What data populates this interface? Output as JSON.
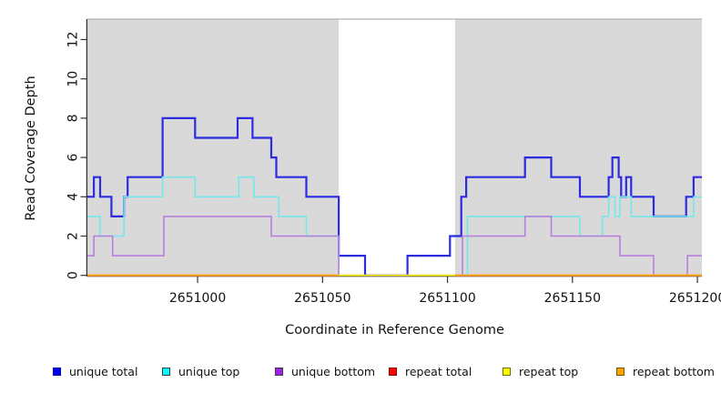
{
  "figure": {
    "x_axis_title": "Coordinate in Reference Genome",
    "y_axis_title": "Read Coverage Depth"
  },
  "chart_data": {
    "type": "line",
    "subtype": "step-coverage-plot",
    "title": "",
    "xlabel": "Coordinate in Reference Genome",
    "ylabel": "Read Coverage Depth",
    "xlim": [
      2650955.9,
      2651201.8
    ],
    "ylim": [
      0,
      13
    ],
    "x_ticks": [
      2651000,
      2651050,
      2651100,
      2651150,
      2651200
    ],
    "x_tick_labels": [
      "2651000",
      "2651050",
      "2651100",
      "2651150",
      "2651200"
    ],
    "y_ticks": [
      0,
      2,
      4,
      6,
      8,
      10,
      12
    ],
    "y_tick_labels": [
      "0",
      "2",
      "4",
      "6",
      "8",
      "10",
      "12"
    ],
    "grid": false,
    "plot_background": "#d9d9d9",
    "plot_top_border": "#b5b5b5",
    "axis_color": "#333333",
    "uncovered_region": {
      "start": 2651056.5,
      "end": 2651103,
      "color": "#ffffff"
    },
    "legend_position": "bottom",
    "series": [
      {
        "name": "unique total",
        "color": "#2b2be0",
        "segments": [
          {
            "end": 2651201.8,
            "points": [
              [
                2650955.9,
                4
              ],
              [
                2650958.5,
                5
              ],
              [
                2650961,
                4
              ],
              [
                2650965.5,
                3
              ],
              [
                2650970.5,
                4
              ],
              [
                2650972,
                5
              ],
              [
                2650986,
                8
              ],
              [
                2650999,
                7
              ],
              [
                2651016,
                8
              ],
              [
                2651022,
                7
              ],
              [
                2651029.5,
                6
              ],
              [
                2651031.5,
                5
              ],
              [
                2651043.5,
                4
              ],
              [
                2651056.5,
                1
              ],
              [
                2651067,
                0
              ],
              [
                2651084,
                1
              ],
              [
                2651101,
                2
              ],
              [
                2651105.5,
                4
              ],
              [
                2651107.5,
                5
              ],
              [
                2651131,
                6
              ],
              [
                2651141.5,
                5
              ],
              [
                2651153,
                4
              ],
              [
                2651164.5,
                5
              ],
              [
                2651166,
                6
              ],
              [
                2651168.5,
                5
              ],
              [
                2651169.5,
                4
              ],
              [
                2651171.5,
                5
              ],
              [
                2651173.5,
                4
              ],
              [
                2651182.5,
                3
              ],
              [
                2651195.5,
                4
              ],
              [
                2651198.5,
                5
              ]
            ]
          }
        ]
      },
      {
        "name": "unique top",
        "color": "#74e8ec",
        "segments": [
          {
            "end": 2651201.8,
            "points": [
              [
                2650955.9,
                3
              ],
              [
                2650961,
                2
              ],
              [
                2650970.5,
                4
              ],
              [
                2650986,
                5
              ],
              [
                2650999,
                4
              ],
              [
                2651016.5,
                5
              ],
              [
                2651022.5,
                4
              ],
              [
                2651032.5,
                3
              ],
              [
                2651043.5,
                2
              ],
              [
                2651056.5,
                0
              ],
              [
                2651108,
                3
              ],
              [
                2651153,
                2
              ],
              [
                2651162,
                3
              ],
              [
                2651164.5,
                4
              ],
              [
                2651167,
                3
              ],
              [
                2651169,
                4
              ],
              [
                2651173.5,
                3
              ],
              [
                2651198.5,
                4
              ]
            ]
          }
        ]
      },
      {
        "name": "unique bottom",
        "color": "#b77fdd",
        "segments": [
          {
            "end": 2651201.8,
            "points": [
              [
                2650955.9,
                1
              ],
              [
                2650958.5,
                2
              ],
              [
                2650966,
                1
              ],
              [
                2650986.5,
                3
              ],
              [
                2651029.5,
                2
              ],
              [
                2651056.5,
                0
              ],
              [
                2651106,
                2
              ],
              [
                2651131,
                3
              ],
              [
                2651141.5,
                2
              ],
              [
                2651169,
                1
              ],
              [
                2651182.5,
                0
              ],
              [
                2651196,
                1
              ]
            ]
          }
        ]
      },
      {
        "name": "repeat total",
        "color": "#e25566",
        "segments": [
          {
            "end": 2651201.8,
            "points": [
              [
                2650955.9,
                0
              ]
            ]
          }
        ]
      },
      {
        "name": "repeat top",
        "color": "#ffff00",
        "segments": [
          {
            "end": 2651201.8,
            "points": [
              [
                2650955.9,
                0
              ]
            ]
          }
        ]
      },
      {
        "name": "repeat bottom",
        "color": "#ffa020",
        "segments": [
          {
            "end": 2651056.5,
            "points": [
              [
                2650955.9,
                0
              ]
            ]
          },
          {
            "end": 2651201.8,
            "points": [
              [
                2651103,
                0
              ]
            ]
          }
        ]
      }
    ],
    "legend": [
      {
        "label": "unique total",
        "fill": "#0000e8",
        "border": "#0000b4"
      },
      {
        "label": "unique top",
        "fill": "#00ffff",
        "border": "#3c3c3c"
      },
      {
        "label": "unique bottom",
        "fill": "#a020f0",
        "border": "#3c3c3c"
      },
      {
        "label": "repeat total",
        "fill": "#ff0000",
        "border": "#8c0000"
      },
      {
        "label": "repeat top",
        "fill": "#ffff00",
        "border": "#6e6e00"
      },
      {
        "label": "repeat bottom",
        "fill": "#ffa500",
        "border": "#7a5200"
      }
    ]
  }
}
